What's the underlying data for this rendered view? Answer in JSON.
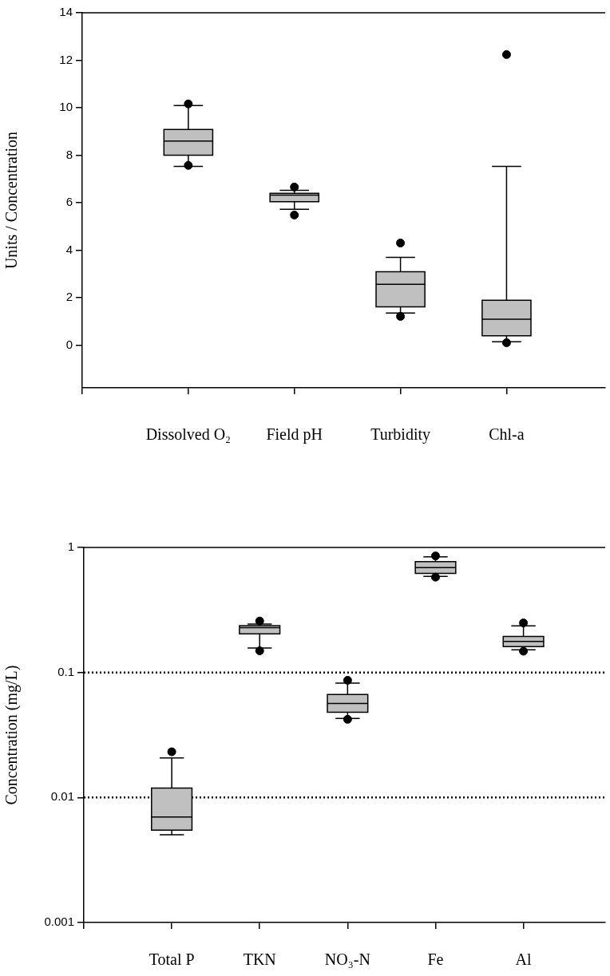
{
  "chart_data": [
    {
      "type": "box",
      "ylabel": "Units / Concentration",
      "categories": [
        "Dissolved O₂",
        "Field pH",
        "Turbidity",
        "Chl-a"
      ],
      "ylim": [
        -1.8,
        14
      ],
      "yticks": [
        0,
        2,
        4,
        6,
        8,
        10,
        12,
        14
      ],
      "grid": false,
      "series": [
        {
          "color": "#c0c0c0",
          "boxes": [
            {
              "low": 7.53,
              "q1": 8.0,
              "median": 8.6,
              "q3": 9.08,
              "high": 10.09,
              "outliers": [
                10.16,
                7.57
              ]
            },
            {
              "low": 5.72,
              "q1": 6.04,
              "median": 6.32,
              "q3": 6.39,
              "high": 6.52,
              "outliers": [
                6.66,
                5.48
              ]
            },
            {
              "low": 1.35,
              "q1": 1.61,
              "median": 2.56,
              "q3": 3.09,
              "high": 3.7,
              "outliers": [
                4.3,
                1.21
              ]
            },
            {
              "low": 0.14,
              "q1": 0.39,
              "median": 1.09,
              "q3": 1.89,
              "high": 7.53,
              "outliers": [
                12.24,
                0.1
              ]
            }
          ]
        }
      ]
    },
    {
      "type": "box",
      "ylabel": "Concentration (mg/L)",
      "categories": [
        "Total P",
        "TKN",
        "NO₃-N",
        "Fe",
        "Al"
      ],
      "log": "y",
      "ylim": [
        0.001,
        1
      ],
      "yticks": [
        0.001,
        0.01,
        0.1,
        1
      ],
      "grid": false,
      "ref_lines": [
        {
          "axis": "y",
          "value": 0.1,
          "line_style": "dotted",
          "color": "#000000"
        },
        {
          "axis": "y",
          "value": 0.01,
          "line_style": "dotted",
          "color": "#000000"
        }
      ],
      "series": [
        {
          "color": "#c0c0c0",
          "boxes": [
            {
              "low": 0.00504,
              "q1": 0.00548,
              "median": 0.00698,
              "q3": 0.0119,
              "high": 0.0207,
              "outliers": [
                0.0232
              ]
            },
            {
              "low": 0.157,
              "q1": 0.204,
              "median": 0.228,
              "q3": 0.237,
              "high": 0.244,
              "outliers": [
                0.258,
                0.149
              ]
            },
            {
              "low": 0.0429,
              "q1": 0.0481,
              "median": 0.0566,
              "q3": 0.0667,
              "high": 0.0822,
              "outliers": [
                0.0866,
                0.0422
              ]
            },
            {
              "low": 0.588,
              "q1": 0.621,
              "median": 0.689,
              "q3": 0.769,
              "high": 0.841,
              "outliers": [
                0.855,
                0.579
              ]
            },
            {
              "low": 0.152,
              "q1": 0.161,
              "median": 0.177,
              "q3": 0.194,
              "high": 0.236,
              "outliers": [
                0.249,
                0.148
              ]
            }
          ]
        }
      ]
    }
  ]
}
